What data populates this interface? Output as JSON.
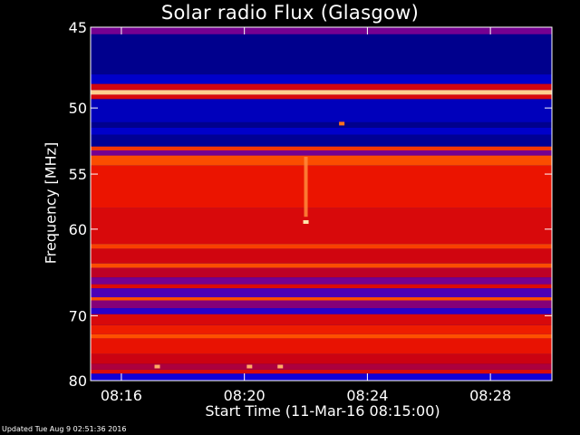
{
  "chart_data": {
    "type": "heatmap",
    "title": "Solar radio Flux (Glasgow)",
    "ylabel": "Frequency [MHz]",
    "xlabel": "Start Time (11-Mar-16 08:15:00)",
    "x_range": [
      "08:15:00",
      "08:30:00"
    ],
    "ylim": [
      45,
      80
    ],
    "y_ticks": [
      {
        "label": "45",
        "value": 45
      },
      {
        "label": "50",
        "value": 50
      },
      {
        "label": "55",
        "value": 55
      },
      {
        "label": "60",
        "value": 60
      },
      {
        "label": "70",
        "value": 70
      },
      {
        "label": "80",
        "value": 80
      }
    ],
    "x_ticks": [
      {
        "label": "08:16",
        "value": "08:16"
      },
      {
        "label": "08:20",
        "value": "08:20"
      },
      {
        "label": "08:24",
        "value": "08:24"
      },
      {
        "label": "08:28",
        "value": "08:28"
      }
    ],
    "colors": {
      "background": "#000000",
      "low": "#0000c8",
      "mid_low": "#6a00a0",
      "mid": "#c80000",
      "high": "#ff3a00",
      "peak": "#ffd080"
    },
    "frequency_bands": [
      {
        "mhz": [
          45.0,
          45.4
        ],
        "level": 0.35
      },
      {
        "mhz": [
          45.4,
          47.8
        ],
        "level": 0.04
      },
      {
        "mhz": [
          47.8,
          48.4
        ],
        "level": 0.12
      },
      {
        "mhz": [
          48.4,
          48.8
        ],
        "level": 0.55
      },
      {
        "mhz": [
          48.8,
          49.1
        ],
        "level": 0.98
      },
      {
        "mhz": [
          49.1,
          49.4
        ],
        "level": 0.6
      },
      {
        "mhz": [
          49.4,
          51.0
        ],
        "level": 0.1
      },
      {
        "mhz": [
          51.0,
          51.4
        ],
        "level": 0.04
      },
      {
        "mhz": [
          51.4,
          51.9
        ],
        "level": 0.12
      },
      {
        "mhz": [
          51.9,
          52.8
        ],
        "level": 0.05
      },
      {
        "mhz": [
          52.8,
          53.1
        ],
        "level": 0.8
      },
      {
        "mhz": [
          53.1,
          53.5
        ],
        "level": 0.35
      },
      {
        "mhz": [
          53.5,
          54.3
        ],
        "level": 0.85
      },
      {
        "mhz": [
          54.3,
          58.0
        ],
        "level": 0.72
      },
      {
        "mhz": [
          58.0,
          61.5
        ],
        "level": 0.6
      },
      {
        "mhz": [
          61.5,
          62.0
        ],
        "level": 0.82
      },
      {
        "mhz": [
          62.0,
          63.6
        ],
        "level": 0.55
      },
      {
        "mhz": [
          63.6,
          64.1
        ],
        "level": 0.85
      },
      {
        "mhz": [
          64.1,
          65.2
        ],
        "level": 0.48
      },
      {
        "mhz": [
          65.2,
          66.0
        ],
        "level": 0.35
      },
      {
        "mhz": [
          66.0,
          66.5
        ],
        "level": 0.62
      },
      {
        "mhz": [
          66.5,
          67.6
        ],
        "level": 0.28
      },
      {
        "mhz": [
          67.6,
          68.0
        ],
        "level": 0.85
      },
      {
        "mhz": [
          68.0,
          69.0
        ],
        "level": 0.38
      },
      {
        "mhz": [
          69.0,
          69.8
        ],
        "level": 0.22
      },
      {
        "mhz": [
          69.8,
          71.3
        ],
        "level": 0.6
      },
      {
        "mhz": [
          71.3,
          72.6
        ],
        "level": 0.74
      },
      {
        "mhz": [
          72.6,
          73.2
        ],
        "level": 0.86
      },
      {
        "mhz": [
          73.2,
          75.6
        ],
        "level": 0.7
      },
      {
        "mhz": [
          75.6,
          77.2
        ],
        "level": 0.52
      },
      {
        "mhz": [
          77.2,
          78.1
        ],
        "level": 0.45
      },
      {
        "mhz": [
          78.1,
          78.8
        ],
        "level": 0.62
      },
      {
        "mhz": [
          78.8,
          80.0
        ],
        "level": 0.18
      }
    ],
    "vertical_bursts": [
      {
        "time": "08:22:00",
        "mhz": [
          53.6,
          58.8
        ],
        "level": 0.92
      }
    ],
    "hot_spots": [
      {
        "time": "08:22:00",
        "mhz": 59.3,
        "level": 1.0
      },
      {
        "time": "08:23:10",
        "mhz": 51.1,
        "level": 0.9
      },
      {
        "time": "08:17:10",
        "mhz": 77.6,
        "level": 0.95
      },
      {
        "time": "08:20:10",
        "mhz": 77.6,
        "level": 0.95
      },
      {
        "time": "08:21:10",
        "mhz": 77.6,
        "level": 0.95
      }
    ]
  },
  "footer": "Updated Tue Aug  9 02:51:36 2016"
}
